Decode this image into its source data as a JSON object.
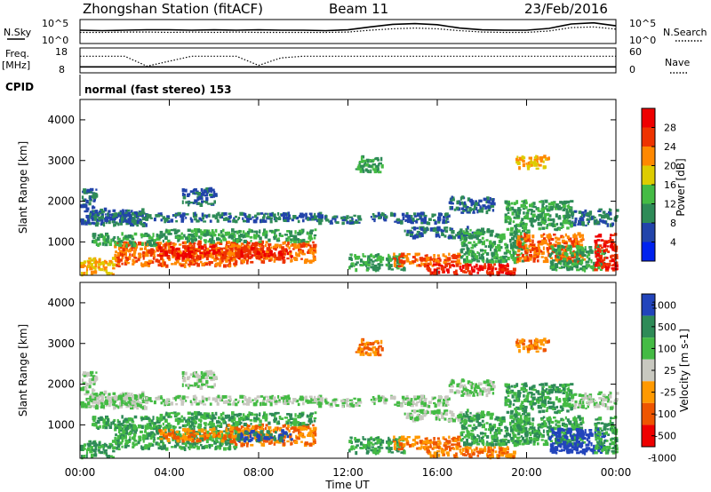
{
  "header": {
    "station": "Zhongshan Station (fitACF)",
    "beam": "Beam 11",
    "date": "23/Feb/2016"
  },
  "sky_panel": {
    "left_label": "N.Sky",
    "right_label": "N.Search",
    "left_ticks": [
      "10^5",
      "10^0"
    ],
    "right_ticks": [
      "10^5",
      "10^0"
    ]
  },
  "freq_panel": {
    "left_label_line1": "Freq.",
    "left_label_line2": "[MHz]",
    "right_label": "Nave",
    "left_ticks": [
      "18",
      "8"
    ],
    "right_ticks": [
      "60",
      "0"
    ]
  },
  "cpid": {
    "label": "CPID",
    "value": "normal (fast stereo) 153"
  },
  "x_axis": {
    "title": "Time UT",
    "ticks": [
      "00:00",
      "04:00",
      "08:00",
      "12:00",
      "16:00",
      "20:00",
      "00:00"
    ]
  },
  "power_panel": {
    "ylabel": "Slant Range [km]",
    "y_ticks": [
      "4000",
      "3000",
      "2000",
      "1000"
    ],
    "colorbar_label": "Power [dB]",
    "colorbar_ticks": [
      "28",
      "24",
      "20",
      "16",
      "12",
      "8",
      "4"
    ],
    "colors": [
      "#0022ee",
      "#2244aa",
      "#2e8b57",
      "#44bb44",
      "#ddcc00",
      "#ff8800",
      "#ee3300",
      "#ee0000"
    ]
  },
  "velocity_panel": {
    "ylabel": "Slant Range [km]",
    "y_ticks": [
      "4000",
      "3000",
      "2000",
      "1000"
    ],
    "colorbar_label": "Velocity [m s-1]",
    "colorbar_ticks": [
      "1000",
      "500",
      "100",
      "25",
      "-25",
      "-100",
      "-500",
      "-1000"
    ],
    "colors": [
      "#2244bb",
      "#2e8b57",
      "#44bb44",
      "#c8c8c0",
      "#ff9900",
      "#ee5500",
      "#ee0000"
    ]
  },
  "chart_data": {
    "type": "heatmap",
    "x_range_hours": [
      0,
      24
    ],
    "y_range_km": [
      180,
      4500
    ],
    "bands": [
      {
        "start": 0.0,
        "end": 3.0,
        "range": [
          1400,
          1800
        ],
        "power": 8,
        "velocity": 25
      },
      {
        "start": 0.3,
        "end": 11.0,
        "range": [
          1500,
          1700
        ],
        "power": 8,
        "velocity": 25
      },
      {
        "start": 10.5,
        "end": 12.5,
        "range": [
          1450,
          1650
        ],
        "power": 8,
        "velocity": 25
      },
      {
        "start": 13.0,
        "end": 16.5,
        "range": [
          1450,
          1700
        ],
        "power": 8,
        "velocity": 25
      },
      {
        "start": 14.5,
        "end": 18.0,
        "range": [
          1100,
          1350
        ],
        "power": 8,
        "velocity": 25
      },
      {
        "start": 22.0,
        "end": 24.0,
        "range": [
          1400,
          1800
        ],
        "power": 8,
        "velocity": 25
      },
      {
        "start": 0.0,
        "end": 1.5,
        "range": [
          200,
          600
        ],
        "power": 20,
        "velocity": 100
      },
      {
        "start": 1.5,
        "end": 7.0,
        "range": [
          400,
          1000
        ],
        "power": 24,
        "velocity": 100
      },
      {
        "start": 3.5,
        "end": 6.5,
        "range": [
          600,
          900
        ],
        "power": 28,
        "velocity": -100
      },
      {
        "start": 6.5,
        "end": 10.5,
        "range": [
          500,
          1000
        ],
        "power": 24,
        "velocity": -100
      },
      {
        "start": 7.0,
        "end": 9.5,
        "range": [
          600,
          850
        ],
        "power": 28,
        "velocity": 500
      },
      {
        "start": 0.5,
        "end": 3.5,
        "range": [
          900,
          1200
        ],
        "power": 12,
        "velocity": 100
      },
      {
        "start": 3.5,
        "end": 10.5,
        "range": [
          1000,
          1300
        ],
        "power": 12,
        "velocity": 100
      },
      {
        "start": 12.0,
        "end": 14.5,
        "range": [
          300,
          700
        ],
        "power": 12,
        "velocity": 100
      },
      {
        "start": 14.0,
        "end": 17.0,
        "range": [
          400,
          700
        ],
        "power": 24,
        "velocity": -100
      },
      {
        "start": 15.5,
        "end": 19.5,
        "range": [
          200,
          450
        ],
        "power": 28,
        "velocity": -100
      },
      {
        "start": 17.0,
        "end": 20.0,
        "range": [
          500,
          1300
        ],
        "power": 12,
        "velocity": 100
      },
      {
        "start": 19.5,
        "end": 22.5,
        "range": [
          500,
          1200
        ],
        "power": 24,
        "velocity": 100
      },
      {
        "start": 21.0,
        "end": 23.5,
        "range": [
          300,
          900
        ],
        "power": 12,
        "velocity": 1000
      },
      {
        "start": 23.0,
        "end": 24.0,
        "range": [
          300,
          1200
        ],
        "power": 28,
        "velocity": 100
      },
      {
        "start": 19.0,
        "end": 22.0,
        "range": [
          1300,
          2000
        ],
        "power": 12,
        "velocity": 100
      },
      {
        "start": 4.5,
        "end": 6.0,
        "range": [
          1900,
          2300
        ],
        "power": 8,
        "velocity": 25
      },
      {
        "start": 0.0,
        "end": 0.8,
        "range": [
          1800,
          2300
        ],
        "power": 8,
        "velocity": 25
      },
      {
        "start": 16.5,
        "end": 18.5,
        "range": [
          1700,
          2100
        ],
        "power": 8,
        "velocity": 25
      },
      {
        "start": 12.3,
        "end": 13.5,
        "range": [
          2700,
          3100
        ],
        "power": 12,
        "velocity": -100
      },
      {
        "start": 19.5,
        "end": 21.0,
        "range": [
          2800,
          3100
        ],
        "power": 20,
        "velocity": -100
      }
    ],
    "nsky_series": [
      3.6,
      3.5,
      3.6,
      3.7,
      3.7,
      3.6,
      3.7,
      3.6,
      3.7,
      3.6,
      3.6,
      3.5,
      3.7,
      4.5,
      5.2,
      5.4,
      5.1,
      4.2,
      3.7,
      3.6,
      3.6,
      4.1,
      5.3,
      5.6,
      4.8
    ],
    "nsearch_series": [
      3.0,
      3.0,
      3.1,
      3.1,
      3.0,
      3.1,
      3.0,
      3.1,
      3.0,
      3.0,
      3.0,
      3.0,
      3.1,
      3.6,
      4.0,
      4.2,
      4.0,
      3.5,
      3.1,
      3.0,
      3.0,
      3.4,
      4.3,
      4.5,
      3.9
    ],
    "freq_mhz": 10.4,
    "nave_series": [
      40,
      40,
      40,
      16,
      28,
      40,
      40,
      40,
      18,
      36,
      40,
      40,
      40,
      40,
      40,
      40,
      40,
      40,
      40,
      40,
      40,
      40,
      40,
      40,
      40
    ]
  }
}
